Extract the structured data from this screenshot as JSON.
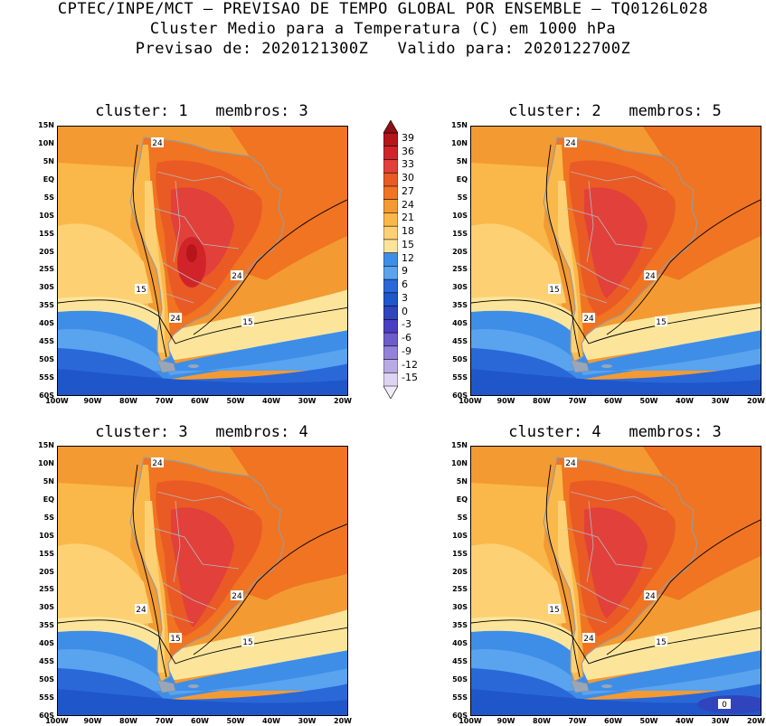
{
  "header": {
    "line1": "CPTEC/INPE/MCT – PREVISAO DE TEMPO GLOBAL POR ENSEMBLE – TQ0126L028",
    "line2": "Cluster Medio para a Temperatura (C) em 1000 hPa",
    "line3": "Previsao de: 2020121300Z   Valido para: 2020122700Z"
  },
  "lat_labels": [
    "15N",
    "10N",
    "5N",
    "EQ",
    "5S",
    "10S",
    "15S",
    "20S",
    "25S",
    "30S",
    "35S",
    "40S",
    "45S",
    "50S",
    "55S",
    "60S"
  ],
  "lon_labels": [
    "100W",
    "90W",
    "80W",
    "70W",
    "60W",
    "50W",
    "40W",
    "30W",
    "20W"
  ],
  "colorbar": {
    "labels": [
      "39",
      "36",
      "33",
      "30",
      "27",
      "24",
      "21",
      "18",
      "15",
      "12",
      "9",
      "6",
      "3",
      "0",
      "-3",
      "-6",
      "-9",
      "-12",
      "-15"
    ],
    "colors": [
      "#b5151b",
      "#d1242a",
      "#e2403a",
      "#ea5a25",
      "#f07422",
      "#f49a33",
      "#fbb84a",
      "#fdd173",
      "#fce59b",
      "#3e8ee8",
      "#5aa3ee",
      "#2a68d8",
      "#1f56c9",
      "#2f44bd",
      "#4a3fc2",
      "#6d5ccc",
      "#9282d8",
      "#b8abe5",
      "#dcd4f2"
    ]
  },
  "clusters": [
    {
      "title": "cluster: 1   membros: 3",
      "contour_labels": [
        "24",
        "24",
        "15",
        "24",
        "15"
      ]
    },
    {
      "title": "cluster: 2   membros: 5",
      "contour_labels": [
        "24",
        "24",
        "15",
        "24",
        "15"
      ]
    },
    {
      "title": "cluster: 3   membros: 4",
      "contour_labels": [
        "24",
        "24",
        "24",
        "15",
        "15"
      ]
    },
    {
      "title": "cluster: 4   membros: 3",
      "contour_labels": [
        "24",
        "24",
        "15",
        "24",
        "15",
        "0"
      ]
    }
  ]
}
